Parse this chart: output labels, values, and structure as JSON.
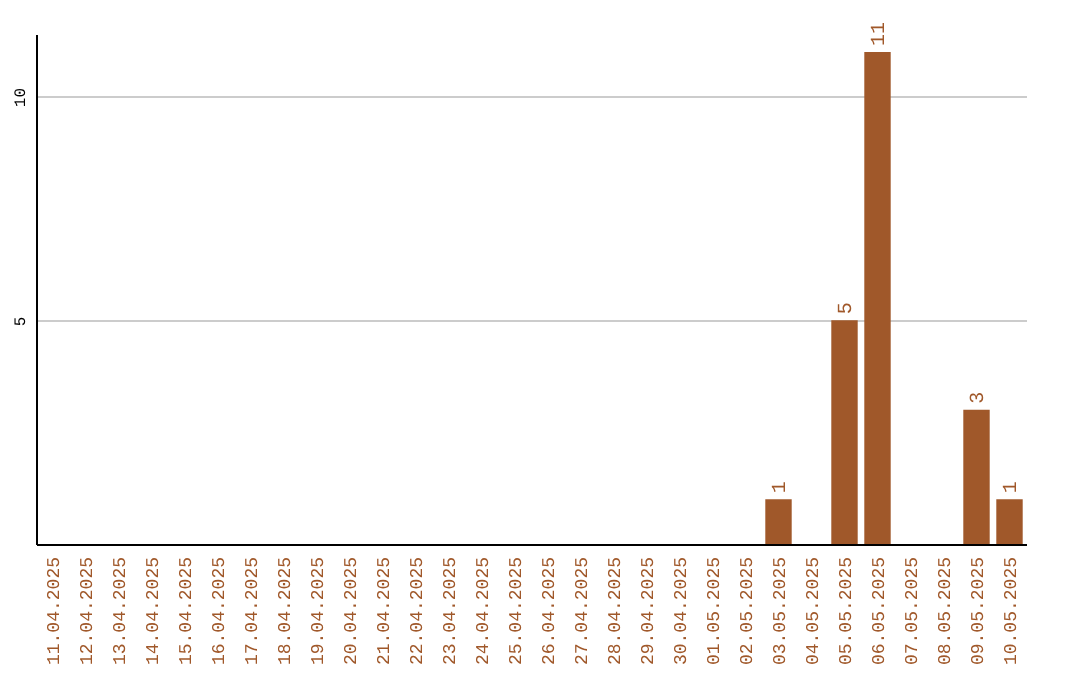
{
  "chart_data": {
    "type": "bar",
    "categories": [
      "11.04.2025",
      "12.04.2025",
      "13.04.2025",
      "14.04.2025",
      "15.04.2025",
      "16.04.2025",
      "17.04.2025",
      "18.04.2025",
      "19.04.2025",
      "20.04.2025",
      "21.04.2025",
      "22.04.2025",
      "23.04.2025",
      "24.04.2025",
      "25.04.2025",
      "26.04.2025",
      "27.04.2025",
      "28.04.2025",
      "29.04.2025",
      "30.04.2025",
      "01.05.2025",
      "02.05.2025",
      "03.05.2025",
      "04.05.2025",
      "05.05.2025",
      "06.05.2025",
      "07.05.2025",
      "08.05.2025",
      "09.05.2025",
      "10.05.2025"
    ],
    "values": [
      0,
      0,
      0,
      0,
      0,
      0,
      0,
      0,
      0,
      0,
      0,
      0,
      0,
      0,
      0,
      0,
      0,
      0,
      0,
      0,
      0,
      0,
      1,
      0,
      5,
      11,
      0,
      0,
      3,
      1
    ],
    "value_labels": [
      null,
      null,
      null,
      null,
      null,
      null,
      null,
      null,
      null,
      null,
      null,
      null,
      null,
      null,
      null,
      null,
      null,
      null,
      null,
      null,
      null,
      null,
      "1",
      null,
      "5",
      "11",
      null,
      null,
      "3",
      "1"
    ],
    "color": "#a0582a",
    "ylim": [
      0,
      11.4
    ],
    "yticks": [
      5,
      10
    ],
    "grid": "y"
  }
}
